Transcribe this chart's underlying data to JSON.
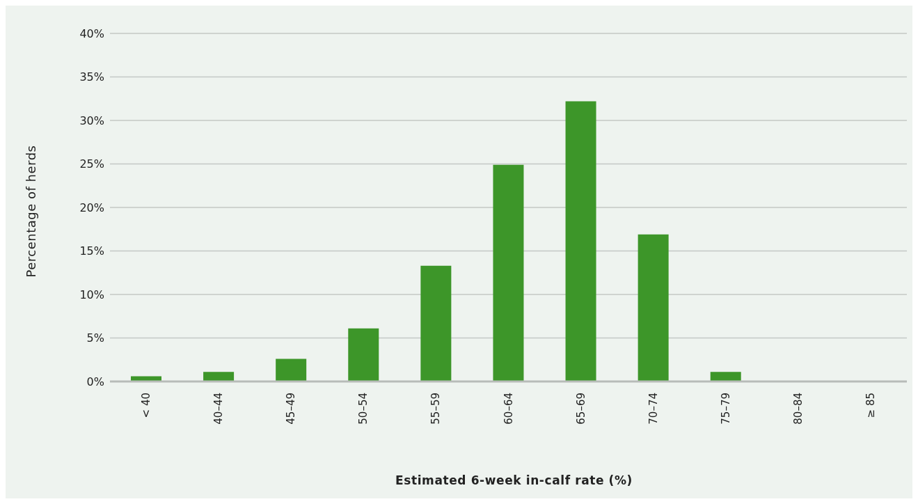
{
  "chart_data": {
    "type": "bar",
    "categories": [
      "< 40",
      "40–44",
      "45–49",
      "50–54",
      "55–59",
      "60–64",
      "65–69",
      "70–74",
      "75–79",
      "80–84",
      "≥ 85"
    ],
    "values": [
      0.6,
      1.1,
      2.6,
      6.1,
      13.3,
      24.9,
      32.2,
      16.9,
      1.1,
      0,
      0
    ],
    "color": "#3d9629",
    "xlabel": "Estimated 6-week in-calf rate (%)",
    "ylabel": "Percentage of herds",
    "ylim": [
      0,
      40
    ],
    "yticks": [
      {
        "value": 0,
        "label": "0%"
      },
      {
        "value": 5,
        "label": "5%"
      },
      {
        "value": 10,
        "label": "10%"
      },
      {
        "value": 15,
        "label": "15%"
      },
      {
        "value": 20,
        "label": "20%"
      },
      {
        "value": 25,
        "label": "25%"
      },
      {
        "value": 30,
        "label": "30%"
      },
      {
        "value": 35,
        "label": "35%"
      },
      {
        "value": 40,
        "label": "40%"
      }
    ],
    "grid": "y"
  }
}
